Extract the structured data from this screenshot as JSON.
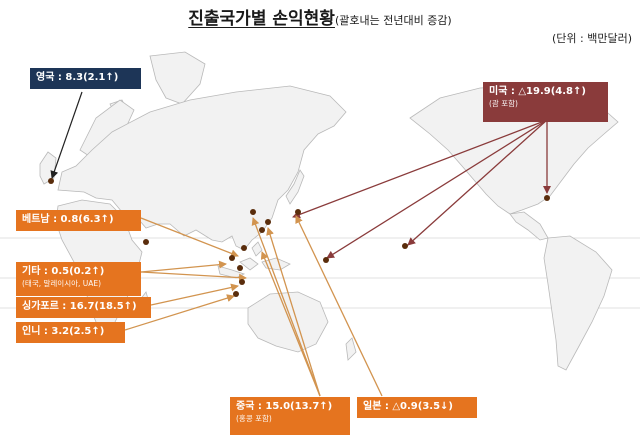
{
  "header": {
    "title": "진출국가별 손익현황",
    "subtitle": "(괄호내는 전년대비 증감)",
    "unit": "(단위 : 백만달러)"
  },
  "regions": {
    "uk": {
      "label": "영국 : 8.3(2.1↑)"
    },
    "usa": {
      "label": "미국 : △19.9(4.8↑)",
      "note": "(괌 포함)"
    },
    "vietnam": {
      "label": "베트남 : 0.8(6.3↑)"
    },
    "others": {
      "label": "기타 : 0.5(0.2↑)",
      "note": "(태국, 말레이시아, UAE)"
    },
    "singapore": {
      "label": "싱가포르 : 16.7(18.5↑)"
    },
    "indonesia": {
      "label": "인니 : 3.2(2.5↑)"
    },
    "china": {
      "label": "중국 : 15.0(13.7↑)",
      "note": "(홍콩 포함)"
    },
    "japan": {
      "label": "일본 : △0.9(3.5↓)"
    }
  },
  "colors": {
    "asia_label": "#e5741f",
    "uk_label": "#1d3557",
    "usa_label": "#8a3b3b",
    "land": "#f2f2f2",
    "coast": "#b9b9b9",
    "asia_arrow": "#d2944f",
    "usa_arrow": "#8a3b3b",
    "marker": "#5a2d0c"
  }
}
